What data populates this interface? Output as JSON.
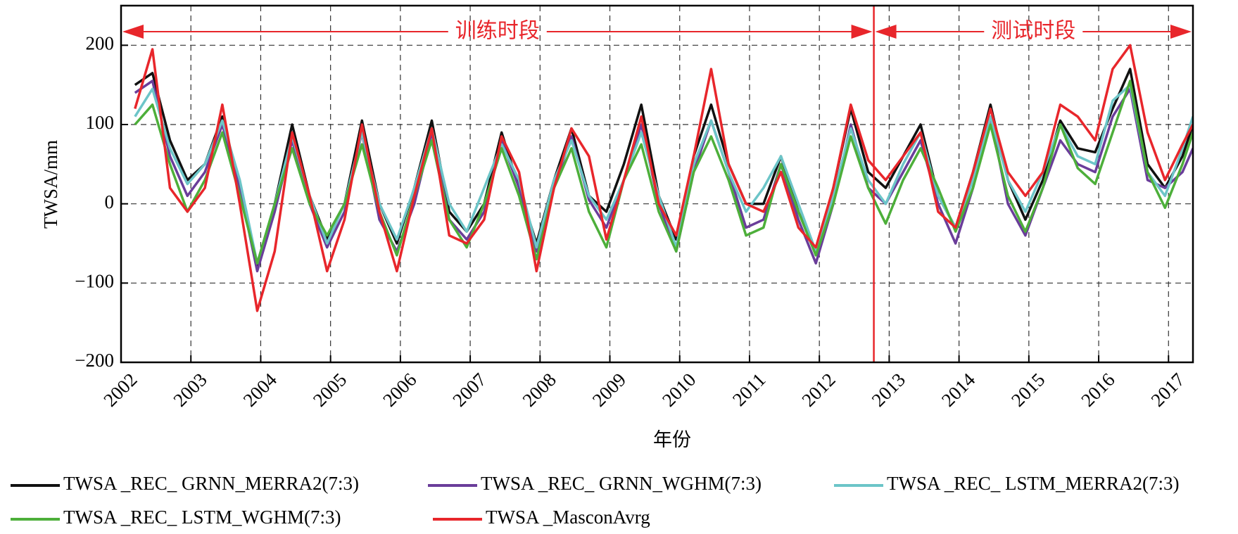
{
  "chart_data": {
    "type": "line",
    "xlabel": "年份",
    "ylabel": "TWSA/mm",
    "annotations": [
      "训练时段",
      "测试时段"
    ],
    "split_x": 2012.78,
    "split_color": "#e8262b",
    "xlim": [
      2002,
      2017.35
    ],
    "xticks": [
      2002,
      2003,
      2004,
      2005,
      2006,
      2007,
      2008,
      2009,
      2010,
      2011,
      2012,
      2013,
      2014,
      2015,
      2016,
      2017
    ],
    "ylim": [
      -200,
      250
    ],
    "yticks": [
      {
        "value": -200,
        "label": "−200"
      },
      {
        "value": -100,
        "label": "−100"
      },
      0,
      100,
      200
    ],
    "grid": true,
    "x": [
      2002.2,
      2002.45,
      2002.7,
      2002.95,
      2003.2,
      2003.45,
      2003.7,
      2003.95,
      2004.2,
      2004.45,
      2004.7,
      2004.95,
      2005.2,
      2005.45,
      2005.7,
      2005.95,
      2006.2,
      2006.45,
      2006.7,
      2006.95,
      2007.2,
      2007.45,
      2007.7,
      2007.95,
      2008.2,
      2008.45,
      2008.7,
      2008.95,
      2009.2,
      2009.45,
      2009.7,
      2009.95,
      2010.2,
      2010.45,
      2010.7,
      2010.95,
      2011.2,
      2011.45,
      2011.7,
      2011.95,
      2012.2,
      2012.45,
      2012.7,
      2012.95,
      2013.2,
      2013.45,
      2013.7,
      2013.95,
      2014.2,
      2014.45,
      2014.7,
      2014.95,
      2015.2,
      2015.45,
      2015.7,
      2015.95,
      2016.2,
      2016.45,
      2016.7,
      2016.95,
      2017.2,
      2017.35
    ],
    "series": [
      {
        "name": "TWSA _REC_ GRNN_MERRA2(7:3)",
        "color": "#111111",
        "values": [
          150,
          165,
          80,
          30,
          50,
          110,
          20,
          -80,
          0,
          100,
          10,
          -45,
          0,
          105,
          0,
          -50,
          20,
          105,
          -10,
          -35,
          0,
          90,
          20,
          -50,
          30,
          95,
          10,
          -10,
          50,
          125,
          10,
          -45,
          60,
          125,
          50,
          0,
          0,
          60,
          -10,
          -60,
          20,
          120,
          40,
          20,
          60,
          100,
          10,
          -30,
          40,
          125,
          30,
          -20,
          30,
          105,
          70,
          65,
          120,
          170,
          50,
          20,
          60,
          100
        ]
      },
      {
        "name": "TWSA _REC_ GRNN_WGHM(7:3)",
        "color": "#6a3d9a",
        "values": [
          140,
          155,
          60,
          10,
          40,
          100,
          20,
          -85,
          -10,
          80,
          0,
          -55,
          -10,
          90,
          -20,
          -60,
          0,
          90,
          -20,
          -45,
          -10,
          80,
          20,
          -60,
          20,
          85,
          5,
          -30,
          30,
          100,
          0,
          -60,
          40,
          105,
          40,
          -30,
          -20,
          50,
          -20,
          -75,
          0,
          100,
          20,
          0,
          40,
          80,
          0,
          -50,
          20,
          110,
          0,
          -40,
          20,
          80,
          50,
          40,
          110,
          145,
          30,
          20,
          40,
          70
        ]
      },
      {
        "name": "TWSA _REC_ LSTM_MERRA2(7:3)",
        "color": "#6cc5c8",
        "values": [
          110,
          145,
          70,
          25,
          50,
          105,
          30,
          -75,
          0,
          85,
          10,
          -50,
          0,
          90,
          0,
          -45,
          20,
          95,
          0,
          -35,
          20,
          75,
          30,
          -55,
          30,
          80,
          10,
          -20,
          30,
          90,
          10,
          -55,
          50,
          105,
          40,
          -10,
          20,
          60,
          0,
          -60,
          10,
          95,
          30,
          0,
          50,
          90,
          10,
          -30,
          30,
          110,
          30,
          -10,
          40,
          100,
          60,
          50,
          130,
          150,
          40,
          10,
          70,
          110
        ]
      },
      {
        "name": "TWSA _REC_ LSTM_WGHM(7:3)",
        "color": "#4daf3a",
        "values": [
          100,
          125,
          50,
          -10,
          30,
          90,
          10,
          -75,
          0,
          70,
          0,
          -40,
          0,
          75,
          -10,
          -65,
          10,
          80,
          -20,
          -55,
          0,
          70,
          10,
          -70,
          20,
          70,
          -10,
          -55,
          30,
          75,
          -10,
          -60,
          40,
          85,
          30,
          -40,
          -30,
          50,
          -10,
          -65,
          0,
          85,
          20,
          -25,
          30,
          70,
          20,
          -35,
          20,
          100,
          10,
          -35,
          20,
          100,
          45,
          25,
          90,
          155,
          40,
          -5,
          50,
          90
        ]
      },
      {
        "name": "TWSA _MasconAvrg",
        "color": "#e8262b",
        "values": [
          120,
          195,
          20,
          -10,
          20,
          125,
          0,
          -135,
          -60,
          90,
          10,
          -85,
          -20,
          100,
          -10,
          -85,
          10,
          95,
          -40,
          -50,
          -20,
          85,
          40,
          -85,
          20,
          95,
          60,
          -45,
          30,
          110,
          0,
          -40,
          60,
          170,
          50,
          0,
          -10,
          40,
          -30,
          -55,
          20,
          125,
          55,
          30,
          60,
          90,
          -10,
          -30,
          40,
          120,
          40,
          10,
          40,
          125,
          110,
          80,
          170,
          200,
          90,
          30,
          75,
          100
        ]
      }
    ]
  }
}
